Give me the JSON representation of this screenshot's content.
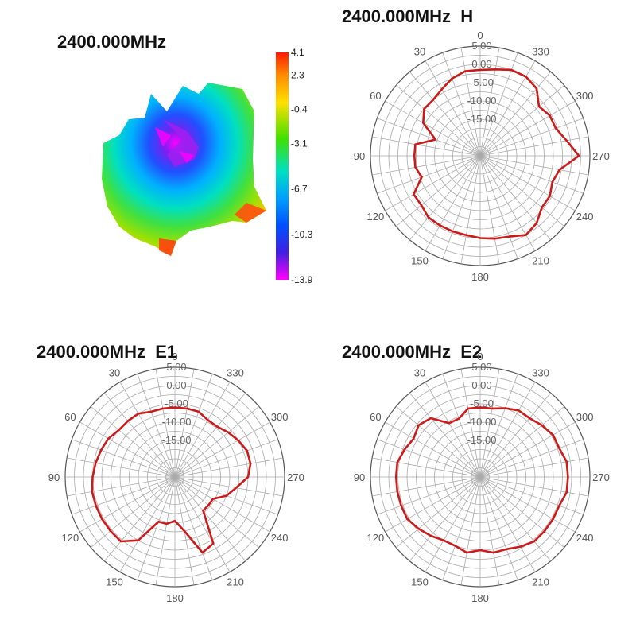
{
  "chart_data": [
    {
      "type": "heatmap",
      "title": "2400.000MHz",
      "colorbar": {
        "labels": [
          "4.1",
          "2.3",
          "-0.4",
          "-3.1",
          "-6.7",
          "-10.3",
          "-13.9"
        ],
        "values": [
          4.1,
          2.3,
          -0.4,
          -3.1,
          -6.7,
          -10.3,
          -13.9
        ],
        "min": -13.9,
        "max": 4.1,
        "colors": [
          "#ff1a00",
          "#ff8c00",
          "#ffe000",
          "#40e000",
          "#00e0a0",
          "#00b0ff",
          "#0050ff",
          "#2020e0",
          "#a020f0",
          "#ff00ff"
        ]
      }
    },
    {
      "type": "polar",
      "title": "2400.000MHz  H",
      "theta_labels": [
        "0",
        "30",
        "60",
        "90",
        "120",
        "150",
        "180",
        "210",
        "240",
        "270",
        "300",
        "330"
      ],
      "radial_labels": [
        "5.00",
        "0.00",
        "-5.00",
        "-10.00",
        "-15.00"
      ],
      "radial_values": [
        5,
        0,
        -5,
        -10,
        -15
      ],
      "rlim": [
        -25,
        5
      ],
      "line_color": "#cc1a1a",
      "angles": [
        0,
        10,
        20,
        30,
        40,
        50,
        60,
        70,
        80,
        90,
        100,
        110,
        120,
        130,
        140,
        150,
        160,
        170,
        180,
        190,
        200,
        210,
        220,
        230,
        240,
        250,
        260,
        270,
        280,
        290,
        300,
        310,
        320,
        330,
        340,
        350
      ],
      "values": [
        -1.5,
        -1.5,
        -2.5,
        -4,
        -5,
        -5,
        -7,
        -12,
        -7,
        -7,
        -7,
        -8,
        -4,
        -4,
        -3,
        -3,
        -3,
        -3,
        -2.5,
        -2,
        -1.5,
        0,
        -1,
        -3,
        -3,
        -4,
        -3,
        2,
        -1,
        -3,
        -3,
        -4,
        -1,
        0,
        0,
        -1
      ]
    },
    {
      "type": "polar",
      "title": "2400.000MHz  E1",
      "theta_labels": [
        "0",
        "30",
        "60",
        "90",
        "120",
        "150",
        "180",
        "210",
        "240",
        "270",
        "300",
        "330"
      ],
      "radial_labels": [
        "5.00",
        "0.00",
        "-5.00",
        "-10.00",
        "-15.00"
      ],
      "radial_values": [
        5,
        0,
        -5,
        -10,
        -15
      ],
      "rlim": [
        -25,
        5
      ],
      "line_color": "#cc1a1a",
      "angles": [
        0,
        10,
        20,
        30,
        40,
        50,
        60,
        70,
        80,
        90,
        100,
        110,
        120,
        130,
        140,
        150,
        160,
        170,
        180,
        190,
        200,
        210,
        220,
        230,
        240,
        250,
        260,
        270,
        280,
        290,
        300,
        310,
        320,
        330,
        340,
        350
      ],
      "values": [
        -6,
        -6,
        -6,
        -5,
        -5,
        -5,
        -4,
        -3.5,
        -3,
        -2.5,
        -2,
        -2,
        -2,
        -2,
        -2,
        -5,
        -12,
        -12,
        -13,
        -10,
        -3,
        -4,
        -13,
        -13,
        -13,
        -10,
        -8,
        -5,
        -4,
        -4,
        -5,
        -6,
        -7,
        -7,
        -6,
        -6
      ]
    },
    {
      "type": "polar",
      "title": "2400.000MHz  E2",
      "theta_labels": [
        "0",
        "30",
        "60",
        "90",
        "120",
        "150",
        "180",
        "210",
        "240",
        "270",
        "300",
        "330"
      ],
      "radial_labels": [
        "5.00",
        "0.00",
        "-5.00",
        "-10.00",
        "-15.00"
      ],
      "radial_values": [
        5,
        0,
        -5,
        -10,
        -15
      ],
      "rlim": [
        -25,
        5
      ],
      "line_color": "#cc1a1a",
      "angles": [
        0,
        10,
        20,
        30,
        40,
        50,
        60,
        70,
        80,
        90,
        100,
        110,
        120,
        130,
        140,
        150,
        160,
        170,
        180,
        190,
        200,
        210,
        220,
        230,
        240,
        250,
        260,
        270,
        280,
        290,
        300,
        310,
        320,
        330,
        340,
        350
      ],
      "values": [
        -6,
        -6,
        -8,
        -8,
        -4,
        -3,
        -4,
        -3,
        -2,
        -2,
        -2,
        -2,
        -2,
        -3,
        -4,
        -5,
        -5,
        -4,
        -5,
        -4,
        -4,
        -3,
        -2,
        -2,
        -2,
        -2,
        -1,
        -1,
        -1,
        -2,
        -2,
        -3,
        -4,
        -4,
        -5,
        -6
      ]
    }
  ]
}
